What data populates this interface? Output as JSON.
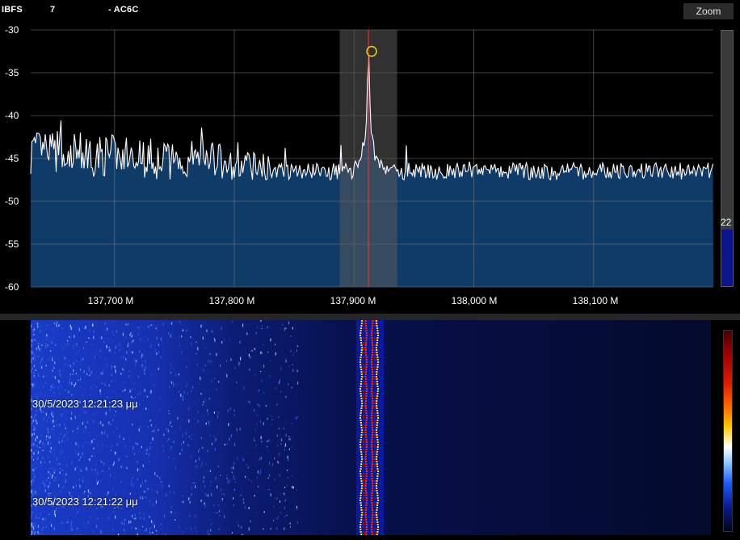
{
  "topbar": {
    "unit_fragment": "IBFS",
    "value_fragment": "7",
    "callsign_fragment": "- AC6C",
    "zoom_label": "Zoom"
  },
  "spectrum": {
    "y_axis": {
      "labels": [
        "-30",
        "-35",
        "-40",
        "-45",
        "-50",
        "-55",
        "-60"
      ],
      "min": -60,
      "max": -30
    },
    "x_axis": {
      "labels": [
        "137,700 M",
        "137,800 M",
        "137,900 M",
        "138,000 M",
        "138,100 M"
      ],
      "start_mhz": 137.63,
      "end_mhz": 138.2
    },
    "tuned_frequency_mhz": 137.912,
    "filter_bandwidth_mhz": {
      "low": 137.888,
      "high": 137.936
    },
    "level_meter": {
      "value_text": "22",
      "fraction": 0.22
    },
    "colors": {
      "background": "#000000",
      "grid": "#7a7a7a",
      "fill": "#0f3b68",
      "trace": "#ffffff",
      "filter_band": "#5a5a5a",
      "tuning_line": "#ff3030",
      "peak_marker": "#e6d400"
    }
  },
  "waterfall": {
    "timestamps": [
      "30/5/2023 12:21:23 μμ",
      "30/5/2023 12:21:22 μμ"
    ],
    "colors": {
      "background": "#02062a",
      "signal": "#ff3000",
      "noise": "#1a3cff"
    }
  },
  "icons": {
    "zoom_button": "zoom-text-button",
    "peak_marker": "circle-marker"
  }
}
